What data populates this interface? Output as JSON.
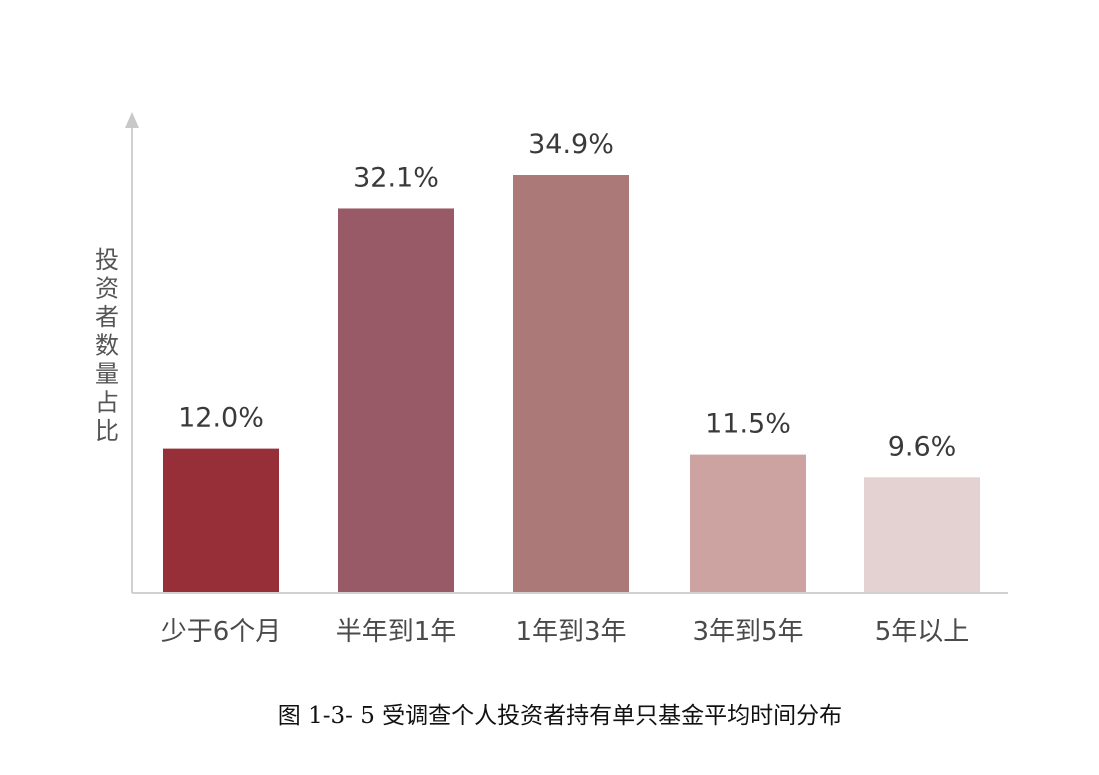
{
  "chart_data": {
    "type": "bar",
    "categories": [
      "少于6个月",
      "半年到1年",
      "1年到3年",
      "3年到5年",
      "5年以上"
    ],
    "values": [
      12.0,
      32.1,
      34.9,
      11.5,
      9.6
    ],
    "value_labels": [
      "12.0%",
      "32.1%",
      "34.9%",
      "11.5%",
      "9.6%"
    ],
    "colors": [
      "#962f37",
      "#985a66",
      "#ab7977",
      "#cda3a2",
      "#e4d2d2"
    ],
    "title": "",
    "caption": "图 1-3- 5 受调查个人投资者持有单只基金平均时间分布",
    "xlabel": "",
    "ylabel": "投资者数量占比",
    "ylim": [
      0,
      40
    ],
    "grid": false,
    "legend": "none"
  }
}
